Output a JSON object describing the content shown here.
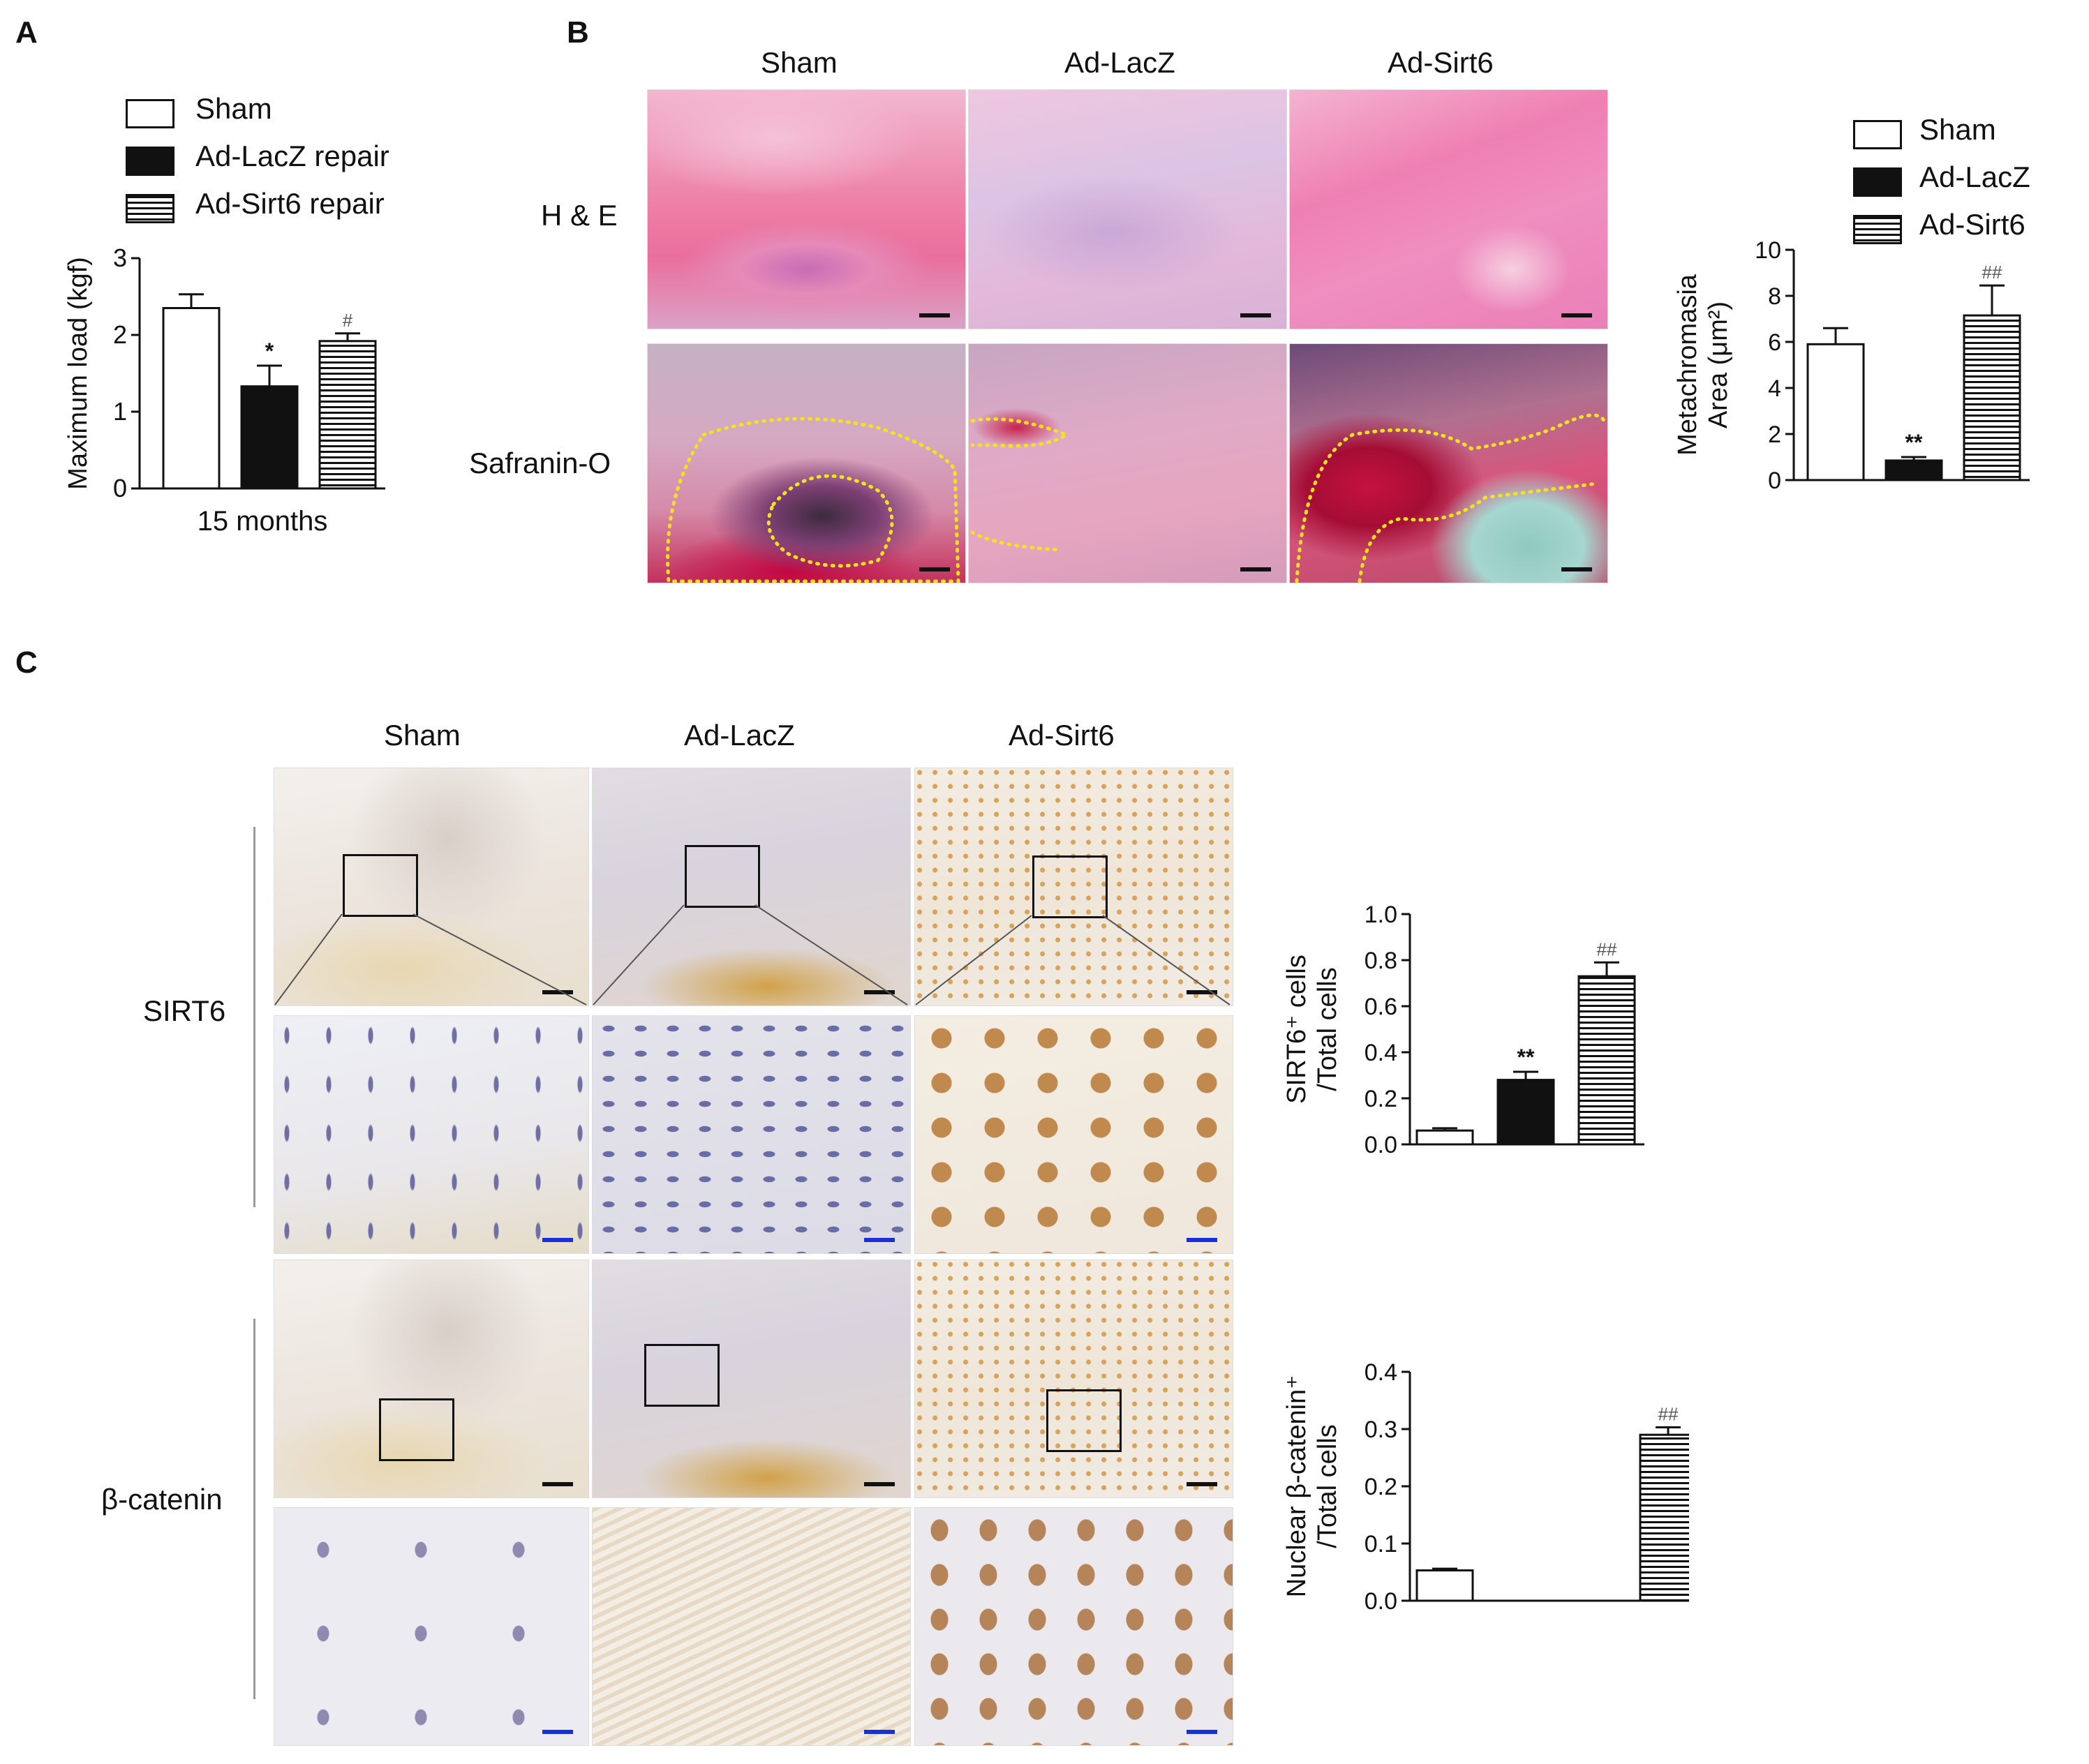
{
  "panels": {
    "A": {
      "letter": "A",
      "legend": [
        "Sham",
        "Ad-LacZ repair",
        "Ad-Sirt6 repair"
      ],
      "group_label": "15 months"
    },
    "B": {
      "letter": "B",
      "columns": [
        "Sham",
        "Ad-LacZ",
        "Ad-Sirt6"
      ],
      "rows": [
        "H & E",
        "Safranin-O"
      ],
      "legend": [
        "Sham",
        "Ad-LacZ",
        "Ad-Sirt6"
      ]
    },
    "C": {
      "letter": "C",
      "columns": [
        "Sham",
        "Ad-LacZ",
        "Ad-Sirt6"
      ],
      "rows": [
        "SIRT6",
        "β-catenin"
      ]
    }
  },
  "chart_data": [
    {
      "id": "A",
      "type": "bar",
      "categories": [
        "Sham",
        "Ad-LacZ repair",
        "Ad-Sirt6 repair"
      ],
      "values": [
        2.35,
        1.33,
        1.92
      ],
      "errors": [
        0.18,
        0.27,
        0.1
      ],
      "annotations": [
        "",
        "*",
        "#"
      ],
      "ylabel": "Maximum load (kgf)",
      "xlabel": "15 months",
      "ylim": [
        0,
        3
      ],
      "yticks": [
        "0",
        "1",
        "2",
        "3"
      ],
      "fills": [
        "white",
        "black",
        "hatched"
      ]
    },
    {
      "id": "B",
      "type": "bar",
      "categories": [
        "Sham",
        "Ad-LacZ",
        "Ad-Sirt6"
      ],
      "values": [
        5.9,
        0.85,
        7.15
      ],
      "errors": [
        0.7,
        0.15,
        1.3
      ],
      "annotations": [
        "",
        "**",
        "##"
      ],
      "ylabel_lines": [
        "Metachromasia",
        "Area (μm²)"
      ],
      "ylim": [
        0,
        10
      ],
      "yticks": [
        "0",
        "2",
        "4",
        "6",
        "8",
        "10"
      ],
      "fills": [
        "white",
        "black",
        "hatched"
      ]
    },
    {
      "id": "C1",
      "type": "bar",
      "categories": [
        "Sham",
        "Ad-LacZ",
        "Ad-Sirt6"
      ],
      "values": [
        0.06,
        0.28,
        0.73
      ],
      "errors": [
        0.01,
        0.035,
        0.06
      ],
      "annotations": [
        "",
        "**",
        "##"
      ],
      "ylabel_lines": [
        "SIRT6⁺ cells",
        "/Total cells"
      ],
      "ylim": [
        0,
        1.0
      ],
      "yticks": [
        "0.0",
        "0.2",
        "0.4",
        "0.6",
        "0.8",
        "1.0"
      ],
      "fills": [
        "white",
        "black",
        "hatched"
      ]
    },
    {
      "id": "C2",
      "type": "bar",
      "categories": [
        "Sham",
        "Ad-LacZ",
        "Ad-Sirt6"
      ],
      "values": [
        0.053,
        0.0,
        0.29
      ],
      "errors": [
        0.003,
        0.0,
        0.013
      ],
      "annotations": [
        "",
        "",
        "##"
      ],
      "ylabel_lines": [
        "Nuclear β-catenin⁺",
        "/Total cells"
      ],
      "ylim": [
        0,
        0.4
      ],
      "yticks": [
        "0.0",
        "0.1",
        "0.2",
        "0.3",
        "0.4"
      ],
      "fills": [
        "white",
        "black",
        "hatched"
      ]
    }
  ]
}
